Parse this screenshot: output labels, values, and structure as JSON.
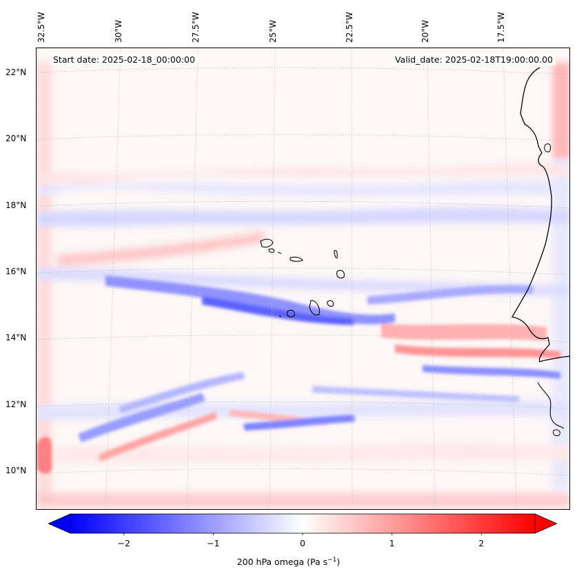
{
  "map": {
    "start_date": "Start date: 2025-02-18_00:00:00",
    "valid_date": "Valid_date: 2025-02-18T19:00:00.00",
    "lon_labels": [
      "32.5°W",
      "30°W",
      "27.5°W",
      "25°W",
      "22.5°W",
      "20°W",
      "17.5°W"
    ],
    "lat_labels": [
      "22°N",
      "20°N",
      "18°N",
      "16°N",
      "14°N",
      "12°N",
      "10°N"
    ],
    "colors": {
      "positive": "#ff0000",
      "negative": "#0000ff",
      "neutral": "#ffffff",
      "coast": "#000000"
    }
  },
  "colorbar": {
    "min": -2.6,
    "max": 2.6,
    "ticks": [
      "−2",
      "−1",
      "0",
      "1",
      "2"
    ],
    "tick_values": [
      -2,
      -1,
      0,
      1,
      2
    ],
    "label_text": "200 hPa omega (Pa s",
    "label_exp": "−1",
    "label_close": ")"
  }
}
